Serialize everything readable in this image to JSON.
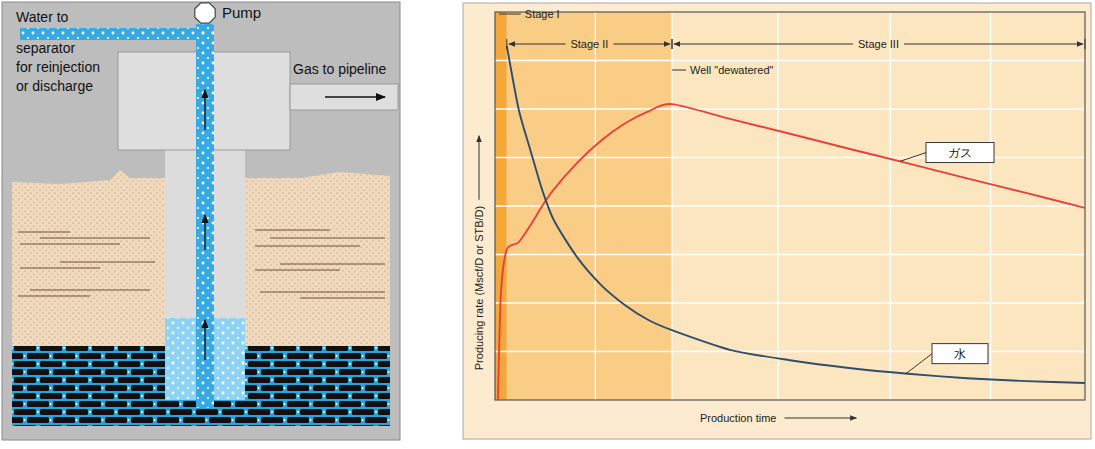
{
  "diagram": {
    "pump": "Pump",
    "water_outlet": [
      "Water to",
      "separator",
      "for reinjection",
      "or discharge"
    ],
    "gas_outlet": "Gas to pipeline"
  },
  "chart_data": {
    "type": "line",
    "x_label": "Production time",
    "y_label": "Producing rate (Mscf/D or STB/D)",
    "x": [
      0.5,
      1,
      2,
      4,
      6,
      8,
      10,
      14,
      18,
      22,
      26,
      30,
      40,
      50,
      60,
      70,
      80,
      90,
      100
    ],
    "series": [
      {
        "name": "ガス",
        "color": "#e8413c",
        "values": [
          0,
          2.2,
          3.1,
          3.25,
          3.6,
          4.0,
          4.35,
          4.9,
          5.35,
          5.7,
          5.95,
          6.1,
          5.79,
          5.49,
          5.18,
          4.88,
          4.57,
          4.27,
          3.96
        ]
      },
      {
        "name": "水",
        "color": "#2f4e6e",
        "values": [
          null,
          null,
          7.3,
          6.0,
          5.15,
          4.33,
          3.7,
          2.93,
          2.37,
          1.96,
          1.65,
          1.44,
          1.03,
          0.82,
          0.66,
          0.54,
          0.45,
          0.39,
          0.35
        ]
      }
    ],
    "xlim": [
      0,
      100
    ],
    "ylim": [
      0,
      8
    ],
    "xticks": [
      17,
      30,
      48,
      67,
      84
    ],
    "yticks": [
      1,
      2,
      3,
      4,
      5,
      6,
      7
    ],
    "grid": true,
    "tick_labels": false,
    "stages": [
      {
        "label": "Stage I",
        "start": 0,
        "end": 2
      },
      {
        "label": "Stage II",
        "start": 2,
        "end": 30
      },
      {
        "label": "Stage III",
        "start": 30,
        "end": 100
      }
    ],
    "annotations": [
      {
        "text": "Well \"dewatered\"",
        "x": 30
      }
    ]
  }
}
